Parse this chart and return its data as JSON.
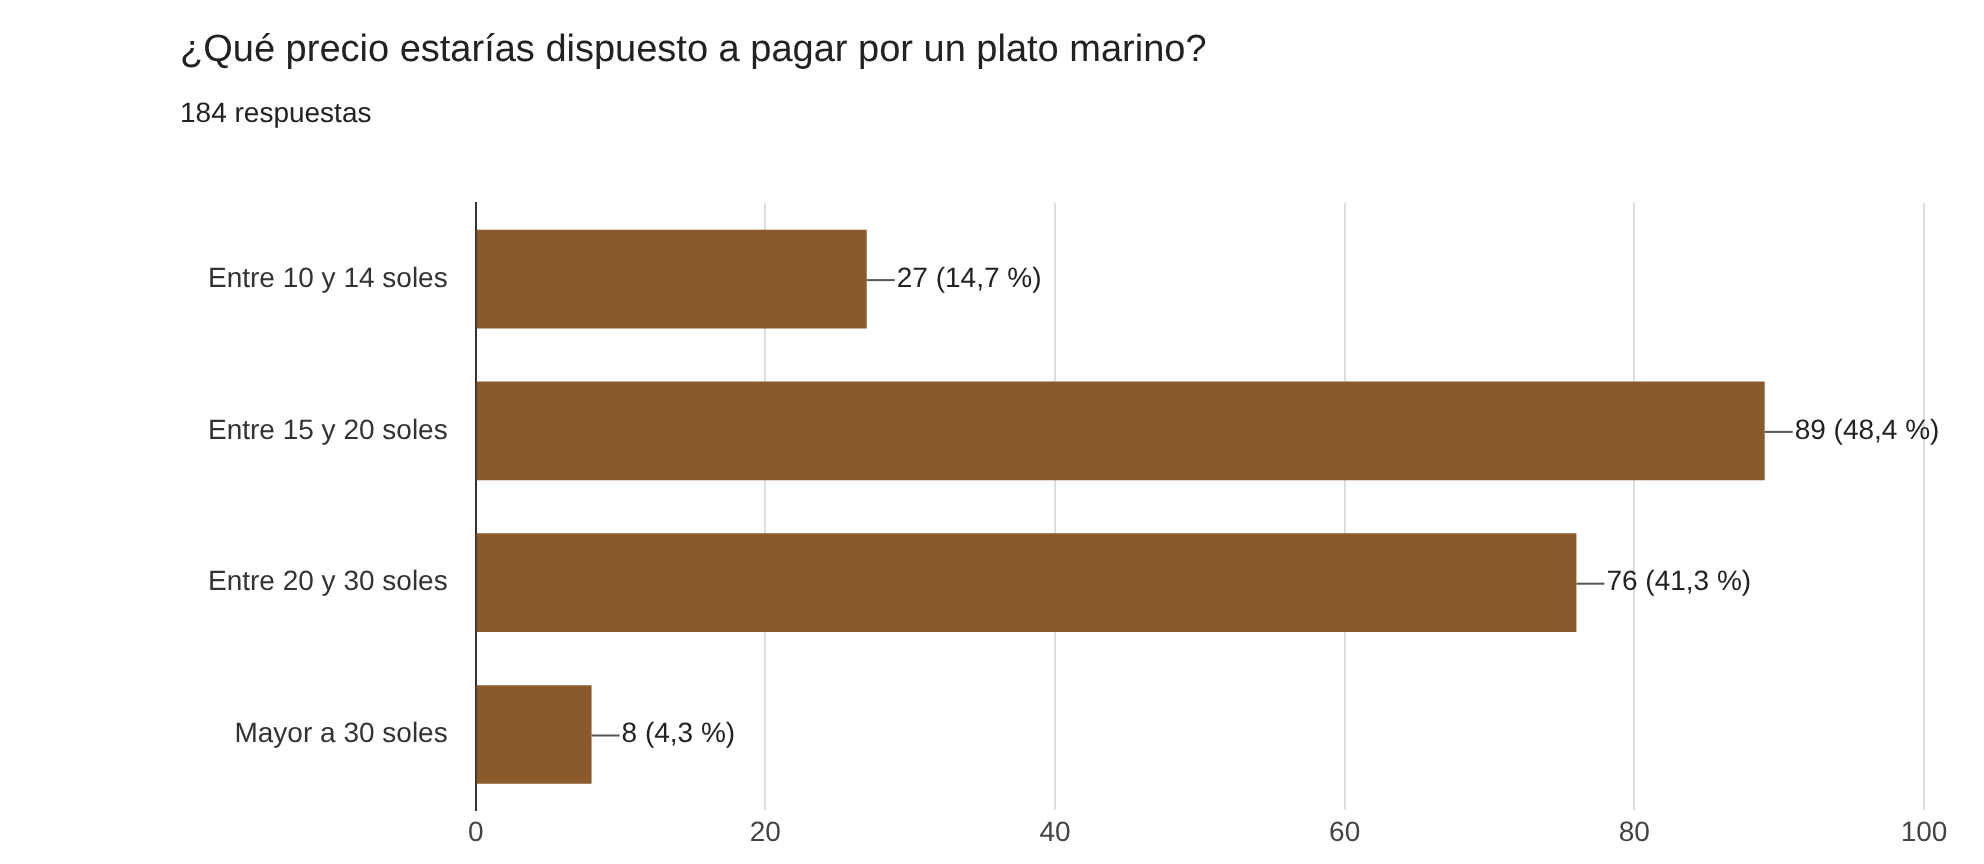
{
  "chart_data": {
    "type": "bar",
    "orientation": "horizontal",
    "title": "¿Qué precio estarías dispuesto a pagar por un plato marino?",
    "subtitle": "184 respuestas",
    "categories": [
      "Entre 10 y 14 soles",
      "Entre 15 y 20 soles",
      "Entre 20 y 30 soles",
      "Mayor a 30 soles"
    ],
    "values": [
      27,
      89,
      76,
      8
    ],
    "color": "#8b5a2b",
    "value_labels": [
      "27 (14,7 %)",
      "89 (48,4 %)",
      "76 (41,3 %)",
      "8 (4,3 %)"
    ],
    "xlim": [
      0,
      100
    ],
    "xticks": [
      0,
      20,
      40,
      60,
      80,
      100
    ],
    "grid": "x",
    "legend": false
  }
}
